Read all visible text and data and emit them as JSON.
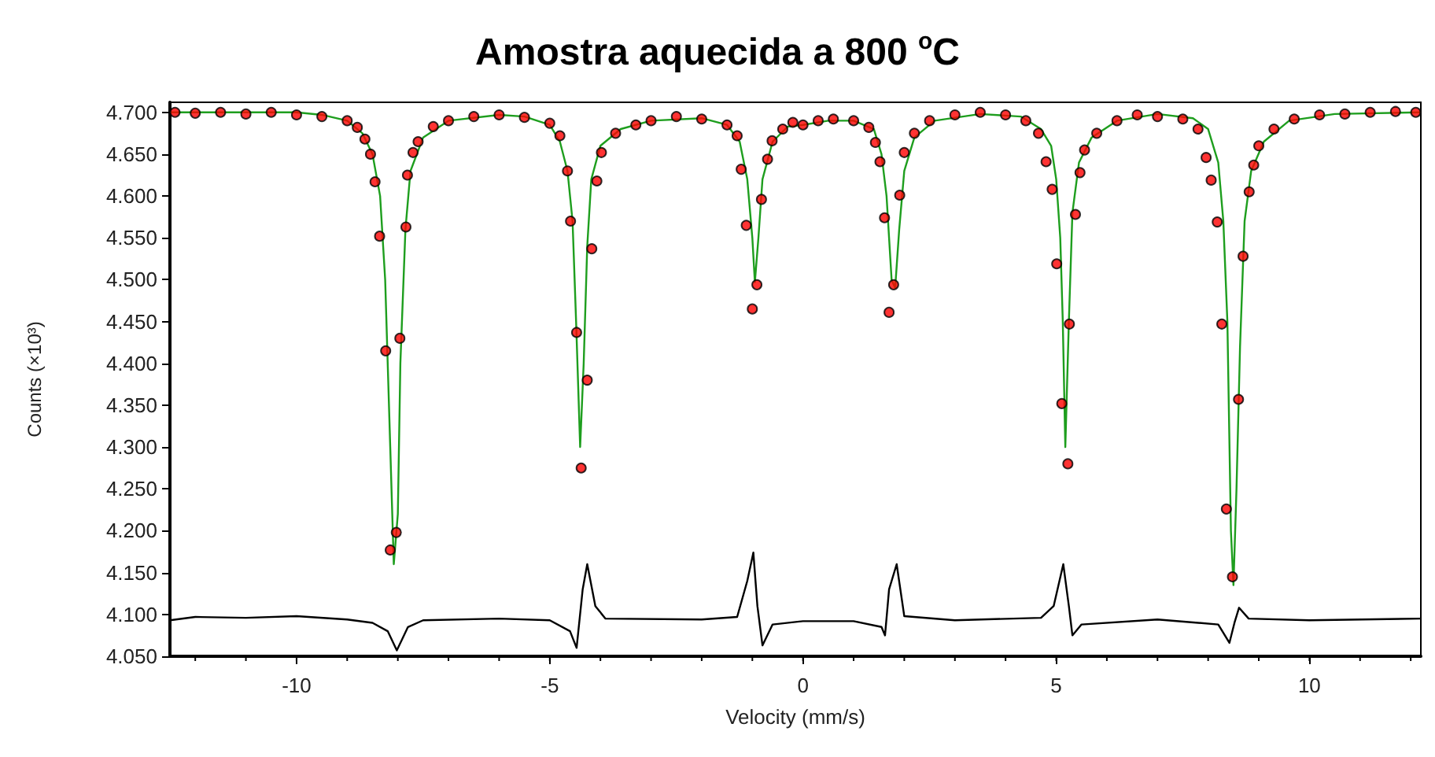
{
  "chart_data": {
    "type": "line",
    "title": "Amostra aquecida a 800 $^{o}$C",
    "xlabel": "Velocity (mm/s)",
    "ylabel": "Counts (×10³)",
    "xlim": [
      -12.5,
      12.2
    ],
    "xticks": [
      -10,
      -5,
      0,
      5,
      10
    ],
    "ylim": [
      4.05,
      4.712
    ],
    "yticks": [
      {
        "value": 4.05,
        "label": "4.050"
      },
      {
        "value": 4.1,
        "label": "4.100"
      },
      {
        "value": 4.15,
        "label": "4.150"
      },
      {
        "value": 4.2,
        "label": "4.200"
      },
      {
        "value": 4.25,
        "label": "4.250"
      },
      {
        "value": 4.3,
        "label": "4.300"
      },
      {
        "value": 4.35,
        "label": "4.350"
      },
      {
        "value": 4.4,
        "label": "4.400"
      },
      {
        "value": 4.45,
        "label": "4.450"
      },
      {
        "value": 4.5,
        "label": "4.500"
      },
      {
        "value": 4.55,
        "label": "4.550"
      },
      {
        "value": 4.6,
        "label": "4.600"
      },
      {
        "value": 4.65,
        "label": "4.650"
      },
      {
        "value": 4.7,
        "label": "4.700"
      }
    ],
    "grid": false,
    "series": [
      {
        "type": "scatter",
        "marker": "circle",
        "color": "#ff0000",
        "x": [
          -12.4,
          -12,
          -11.5,
          -11,
          -10.5,
          -10,
          -9.5,
          -9,
          -8.8,
          -8.65,
          -8.54,
          -8.45,
          -8.36,
          -8.24,
          -8.15,
          -8.03,
          -7.96,
          -7.84,
          -7.81,
          -7.7,
          -7.6,
          -7.3,
          -7,
          -6.5,
          -6,
          -5.5,
          -5,
          -4.8,
          -4.65,
          -4.59,
          -4.47,
          -4.38,
          -4.26,
          -4.17,
          -4.07,
          -3.98,
          -3.7,
          -3.3,
          -3,
          -2.5,
          -2,
          -1.5,
          -1.3,
          -1.22,
          -1.12,
          -1,
          -0.91,
          -0.82,
          -0.7,
          -0.61,
          -0.4,
          -0.2,
          0,
          0.3,
          0.6,
          1,
          1.3,
          1.43,
          1.52,
          1.61,
          1.7,
          1.79,
          1.91,
          2,
          2.2,
          2.5,
          3,
          3.5,
          4,
          4.4,
          4.65,
          4.8,
          4.92,
          5.01,
          5.11,
          5.23,
          5.26,
          5.38,
          5.47,
          5.56,
          5.8,
          6.2,
          6.6,
          7,
          7.5,
          7.8,
          7.96,
          8.06,
          8.18,
          8.27,
          8.36,
          8.48,
          8.6,
          8.69,
          8.81,
          8.9,
          9,
          9.3,
          9.7,
          10.2,
          10.7,
          11.2,
          11.7,
          12.1
        ],
        "values": [
          4.7,
          4.699,
          4.7,
          4.698,
          4.7,
          4.697,
          4.695,
          4.69,
          4.682,
          4.668,
          4.65,
          4.617,
          4.552,
          4.415,
          4.177,
          4.198,
          4.43,
          4.563,
          4.625,
          4.652,
          4.665,
          4.683,
          4.69,
          4.695,
          4.697,
          4.694,
          4.687,
          4.672,
          4.63,
          4.57,
          4.437,
          4.275,
          4.38,
          4.537,
          4.618,
          4.652,
          4.675,
          4.685,
          4.69,
          4.695,
          4.692,
          4.685,
          4.672,
          4.632,
          4.565,
          4.465,
          4.494,
          4.596,
          4.644,
          4.666,
          4.68,
          4.688,
          4.685,
          4.69,
          4.692,
          4.69,
          4.682,
          4.664,
          4.641,
          4.574,
          4.461,
          4.494,
          4.601,
          4.652,
          4.675,
          4.69,
          4.697,
          4.7,
          4.697,
          4.69,
          4.675,
          4.641,
          4.608,
          4.519,
          4.352,
          4.28,
          4.447,
          4.578,
          4.628,
          4.655,
          4.675,
          4.69,
          4.697,
          4.695,
          4.692,
          4.68,
          4.646,
          4.619,
          4.569,
          4.447,
          4.226,
          4.145,
          4.357,
          4.528,
          4.605,
          4.637,
          4.66,
          4.68,
          4.692,
          4.697,
          4.698,
          4.7,
          4.701,
          4.7
        ]
      },
      {
        "type": "line",
        "color": "#1e9e1e",
        "x": [
          -12.5,
          -10,
          -9.5,
          -9,
          -8.7,
          -8.5,
          -8.35,
          -8.25,
          -8.15,
          -8.08,
          -8.0,
          -7.95,
          -7.85,
          -7.75,
          -7.5,
          -7,
          -6,
          -5.5,
          -5,
          -4.8,
          -4.65,
          -4.55,
          -4.48,
          -4.4,
          -4.33,
          -4.26,
          -4.18,
          -4.0,
          -3.6,
          -3,
          -2,
          -1.5,
          -1.25,
          -1.1,
          -1.0,
          -0.95,
          -0.88,
          -0.8,
          -0.6,
          -0.3,
          0,
          0.5,
          1,
          1.4,
          1.55,
          1.65,
          1.75,
          1.82,
          1.9,
          2.0,
          2.2,
          2.6,
          3.5,
          4.3,
          4.7,
          4.9,
          5.0,
          5.08,
          5.13,
          5.18,
          5.25,
          5.32,
          5.45,
          5.7,
          6.2,
          7,
          7.7,
          8.0,
          8.2,
          8.3,
          8.38,
          8.45,
          8.5,
          8.56,
          8.63,
          8.72,
          8.85,
          9.1,
          9.6,
          10.5,
          12.2
        ],
        "values": [
          4.7,
          4.7,
          4.697,
          4.69,
          4.675,
          4.65,
          4.6,
          4.5,
          4.3,
          4.16,
          4.22,
          4.4,
          4.56,
          4.63,
          4.67,
          4.69,
          4.697,
          4.695,
          4.685,
          4.665,
          4.63,
          4.57,
          4.45,
          4.3,
          4.4,
          4.54,
          4.62,
          4.66,
          4.68,
          4.69,
          4.693,
          4.685,
          4.665,
          4.62,
          4.55,
          4.497,
          4.55,
          4.62,
          4.665,
          4.683,
          4.685,
          4.69,
          4.69,
          4.68,
          4.65,
          4.6,
          4.5,
          4.49,
          4.56,
          4.63,
          4.67,
          4.69,
          4.698,
          4.695,
          4.68,
          4.66,
          4.62,
          4.55,
          4.45,
          4.3,
          4.45,
          4.58,
          4.64,
          4.67,
          4.69,
          4.698,
          4.693,
          4.68,
          4.64,
          4.57,
          4.45,
          4.2,
          4.135,
          4.25,
          4.42,
          4.57,
          4.63,
          4.665,
          4.69,
          4.698,
          4.7
        ]
      },
      {
        "type": "line",
        "color": "#000000",
        "x": [
          -12.5,
          -12,
          -11,
          -10,
          -9,
          -8.5,
          -8.2,
          -8.02,
          -7.8,
          -7.5,
          -6,
          -5,
          -4.6,
          -4.47,
          -4.35,
          -4.26,
          -4.1,
          -3.9,
          -2,
          -1.3,
          -1.1,
          -0.98,
          -0.9,
          -0.8,
          -0.6,
          0,
          1,
          1.55,
          1.62,
          1.7,
          1.85,
          2,
          3,
          4.7,
          4.95,
          5.14,
          5.25,
          5.32,
          5.5,
          7,
          8.2,
          8.42,
          8.52,
          8.61,
          8.8,
          10,
          12.2
        ],
        "values": [
          4.093,
          4.097,
          4.096,
          4.098,
          4.094,
          4.09,
          4.08,
          4.057,
          4.085,
          4.093,
          4.095,
          4.093,
          4.08,
          4.06,
          4.13,
          4.16,
          4.11,
          4.095,
          4.094,
          4.097,
          4.14,
          4.174,
          4.11,
          4.063,
          4.088,
          4.092,
          4.092,
          4.085,
          4.075,
          4.13,
          4.16,
          4.098,
          4.093,
          4.096,
          4.11,
          4.16,
          4.11,
          4.075,
          4.088,
          4.094,
          4.088,
          4.066,
          4.09,
          4.108,
          4.095,
          4.093,
          4.095
        ]
      }
    ]
  }
}
